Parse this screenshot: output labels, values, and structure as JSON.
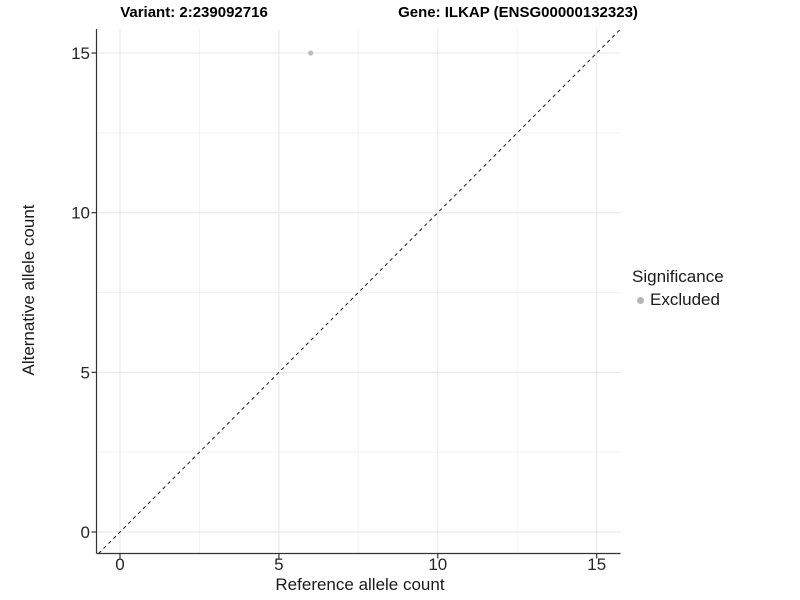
{
  "chart_data": {
    "type": "scatter",
    "title_left": "Variant: 2:239092716",
    "title_right": "Gene: ILKAP (ENSG00000132323)",
    "xlabel": "Reference allele count",
    "ylabel": "Alternative allele count",
    "xlim": [
      -0.75,
      15.75
    ],
    "ylim": [
      -0.75,
      15.75
    ],
    "xticks": [
      0,
      5,
      10,
      15
    ],
    "yticks": [
      0,
      5,
      10,
      15
    ],
    "xticks_minor": [
      2.5,
      7.5,
      12.5
    ],
    "yticks_minor": [
      2.5,
      7.5,
      12.5
    ],
    "grid": true,
    "points": [
      {
        "x": 6,
        "y": 15,
        "series": "Excluded"
      }
    ],
    "reference_line": {
      "type": "identity",
      "slope": 1,
      "intercept": 0,
      "style": "dashed"
    },
    "legend": {
      "title": "Significance",
      "position": "right",
      "entries": [
        {
          "label": "Excluded",
          "color": "#b5b5b5"
        }
      ]
    },
    "colors": {
      "point": "#bcbcbc",
      "grid_major": "#e6e6e6",
      "grid_minor": "#f2f2f2",
      "axis_line": "#333333",
      "tick_text": "#262626",
      "reference_line": "#1a1a1a"
    }
  }
}
